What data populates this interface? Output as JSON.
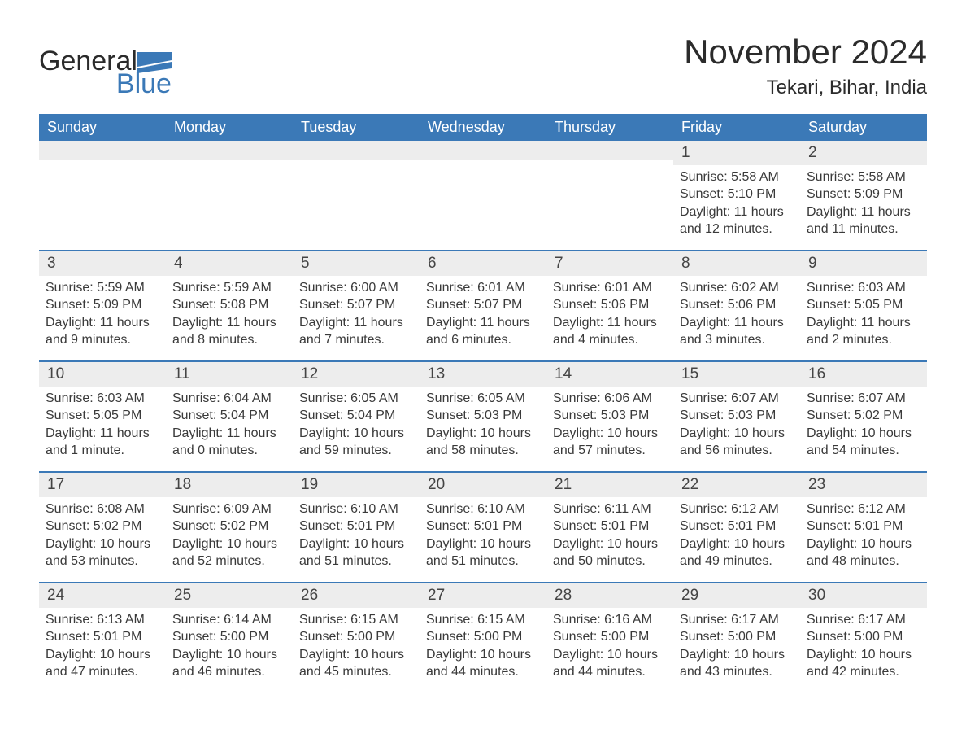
{
  "brand": {
    "part1": "General",
    "part2": "Blue"
  },
  "title": {
    "month_year": "November 2024",
    "location": "Tekari, Bihar, India"
  },
  "colors": {
    "header_bg": "#3b79b7",
    "header_text": "#ffffff",
    "daynum_bg": "#ededed",
    "week_separator": "#3b79b7",
    "body_text": "#3a3a3a",
    "page_bg": "#ffffff"
  },
  "weekdays": [
    "Sunday",
    "Monday",
    "Tuesday",
    "Wednesday",
    "Thursday",
    "Friday",
    "Saturday"
  ],
  "labels": {
    "sunrise": "Sunrise:",
    "sunset": "Sunset:",
    "daylight": "Daylight:"
  },
  "weeks": [
    [
      null,
      null,
      null,
      null,
      null,
      {
        "n": "1",
        "sunrise": "5:58 AM",
        "sunset": "5:10 PM",
        "daylight": "11 hours and 12 minutes."
      },
      {
        "n": "2",
        "sunrise": "5:58 AM",
        "sunset": "5:09 PM",
        "daylight": "11 hours and 11 minutes."
      }
    ],
    [
      {
        "n": "3",
        "sunrise": "5:59 AM",
        "sunset": "5:09 PM",
        "daylight": "11 hours and 9 minutes."
      },
      {
        "n": "4",
        "sunrise": "5:59 AM",
        "sunset": "5:08 PM",
        "daylight": "11 hours and 8 minutes."
      },
      {
        "n": "5",
        "sunrise": "6:00 AM",
        "sunset": "5:07 PM",
        "daylight": "11 hours and 7 minutes."
      },
      {
        "n": "6",
        "sunrise": "6:01 AM",
        "sunset": "5:07 PM",
        "daylight": "11 hours and 6 minutes."
      },
      {
        "n": "7",
        "sunrise": "6:01 AM",
        "sunset": "5:06 PM",
        "daylight": "11 hours and 4 minutes."
      },
      {
        "n": "8",
        "sunrise": "6:02 AM",
        "sunset": "5:06 PM",
        "daylight": "11 hours and 3 minutes."
      },
      {
        "n": "9",
        "sunrise": "6:03 AM",
        "sunset": "5:05 PM",
        "daylight": "11 hours and 2 minutes."
      }
    ],
    [
      {
        "n": "10",
        "sunrise": "6:03 AM",
        "sunset": "5:05 PM",
        "daylight": "11 hours and 1 minute."
      },
      {
        "n": "11",
        "sunrise": "6:04 AM",
        "sunset": "5:04 PM",
        "daylight": "11 hours and 0 minutes."
      },
      {
        "n": "12",
        "sunrise": "6:05 AM",
        "sunset": "5:04 PM",
        "daylight": "10 hours and 59 minutes."
      },
      {
        "n": "13",
        "sunrise": "6:05 AM",
        "sunset": "5:03 PM",
        "daylight": "10 hours and 58 minutes."
      },
      {
        "n": "14",
        "sunrise": "6:06 AM",
        "sunset": "5:03 PM",
        "daylight": "10 hours and 57 minutes."
      },
      {
        "n": "15",
        "sunrise": "6:07 AM",
        "sunset": "5:03 PM",
        "daylight": "10 hours and 56 minutes."
      },
      {
        "n": "16",
        "sunrise": "6:07 AM",
        "sunset": "5:02 PM",
        "daylight": "10 hours and 54 minutes."
      }
    ],
    [
      {
        "n": "17",
        "sunrise": "6:08 AM",
        "sunset": "5:02 PM",
        "daylight": "10 hours and 53 minutes."
      },
      {
        "n": "18",
        "sunrise": "6:09 AM",
        "sunset": "5:02 PM",
        "daylight": "10 hours and 52 minutes."
      },
      {
        "n": "19",
        "sunrise": "6:10 AM",
        "sunset": "5:01 PM",
        "daylight": "10 hours and 51 minutes."
      },
      {
        "n": "20",
        "sunrise": "6:10 AM",
        "sunset": "5:01 PM",
        "daylight": "10 hours and 51 minutes."
      },
      {
        "n": "21",
        "sunrise": "6:11 AM",
        "sunset": "5:01 PM",
        "daylight": "10 hours and 50 minutes."
      },
      {
        "n": "22",
        "sunrise": "6:12 AM",
        "sunset": "5:01 PM",
        "daylight": "10 hours and 49 minutes."
      },
      {
        "n": "23",
        "sunrise": "6:12 AM",
        "sunset": "5:01 PM",
        "daylight": "10 hours and 48 minutes."
      }
    ],
    [
      {
        "n": "24",
        "sunrise": "6:13 AM",
        "sunset": "5:01 PM",
        "daylight": "10 hours and 47 minutes."
      },
      {
        "n": "25",
        "sunrise": "6:14 AM",
        "sunset": "5:00 PM",
        "daylight": "10 hours and 46 minutes."
      },
      {
        "n": "26",
        "sunrise": "6:15 AM",
        "sunset": "5:00 PM",
        "daylight": "10 hours and 45 minutes."
      },
      {
        "n": "27",
        "sunrise": "6:15 AM",
        "sunset": "5:00 PM",
        "daylight": "10 hours and 44 minutes."
      },
      {
        "n": "28",
        "sunrise": "6:16 AM",
        "sunset": "5:00 PM",
        "daylight": "10 hours and 44 minutes."
      },
      {
        "n": "29",
        "sunrise": "6:17 AM",
        "sunset": "5:00 PM",
        "daylight": "10 hours and 43 minutes."
      },
      {
        "n": "30",
        "sunrise": "6:17 AM",
        "sunset": "5:00 PM",
        "daylight": "10 hours and 42 minutes."
      }
    ]
  ]
}
